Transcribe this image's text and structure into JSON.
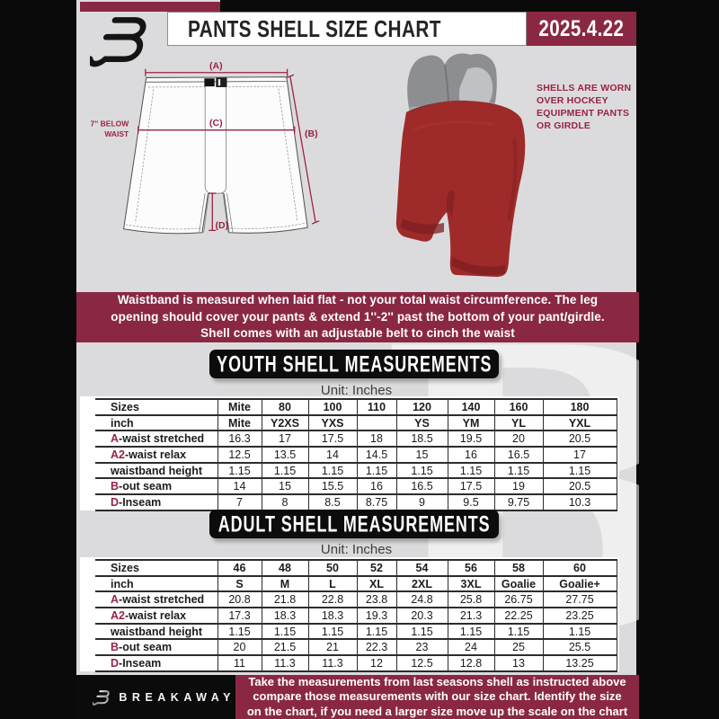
{
  "header": {
    "title": "PANTS SHELL SIZE CHART",
    "date": "2025.4.22"
  },
  "diagram": {
    "label_a": "(A)",
    "label_b": "(B)",
    "label_c": "(C)",
    "label_d": "(D)",
    "below_waist_1": "7'' BELOW",
    "below_waist_2": "WAIST",
    "photo_note": "SHELLS ARE WORN OVER HOCKEY EQUIPMENT PANTS OR GIRDLE"
  },
  "info_banner": {
    "lines": [
      "Waistband is measured when laid flat - not your total waist circumference. The leg",
      "opening should cover your pants & extend 1''-2'' past the bottom of your pant/girdle.",
      "Shell comes with an adjustable belt to cinch the waist"
    ]
  },
  "youth": {
    "heading": "YOUTH SHELL MEASUREMENTS",
    "unit": "Unit: Inches",
    "table": {
      "rows": [
        {
          "accent": "",
          "label": "Sizes",
          "header": true,
          "values": [
            "Mite",
            "80",
            "100",
            "110",
            "120",
            "140",
            "160",
            "180"
          ]
        },
        {
          "accent": "",
          "label": "inch",
          "header": true,
          "values": [
            "Mite",
            "Y2XS",
            "YXS",
            "",
            "YS",
            "YM",
            "YL",
            "YXL"
          ]
        },
        {
          "accent": "A",
          "label": "-waist stretched",
          "header": false,
          "values": [
            "16.3",
            "17",
            "17.5",
            "18",
            "18.5",
            "19.5",
            "20",
            "20.5"
          ]
        },
        {
          "accent": "A2",
          "label": "-waist relax",
          "header": false,
          "values": [
            "12.5",
            "13.5",
            "14",
            "14.5",
            "15",
            "16",
            "16.5",
            "17"
          ]
        },
        {
          "accent": "",
          "label": "waistband height",
          "header": false,
          "values": [
            "1.15",
            "1.15",
            "1.15",
            "1.15",
            "1.15",
            "1.15",
            "1.15",
            "1.15"
          ]
        },
        {
          "accent": "B",
          "label": "-out seam",
          "header": false,
          "values": [
            "14",
            "15",
            "15.5",
            "16",
            "16.5",
            "17.5",
            "19",
            "20.5"
          ]
        },
        {
          "accent": "D",
          "label": "-Inseam",
          "header": false,
          "values": [
            "7",
            "8",
            "8.5",
            "8.75",
            "9",
            "9.5",
            "9.75",
            "10.3"
          ]
        }
      ]
    }
  },
  "adult": {
    "heading": "ADULT SHELL MEASUREMENTS",
    "unit": "Unit: Inches",
    "table": {
      "rows": [
        {
          "accent": "",
          "label": "Sizes",
          "header": true,
          "values": [
            "46",
            "48",
            "50",
            "52",
            "54",
            "56",
            "58",
            "60"
          ]
        },
        {
          "accent": "",
          "label": "inch",
          "header": true,
          "values": [
            "S",
            "M",
            "L",
            "XL",
            "2XL",
            "3XL",
            "Goalie",
            "Goalie+"
          ]
        },
        {
          "accent": "A",
          "label": "-waist stretched",
          "header": false,
          "values": [
            "20.8",
            "21.8",
            "22.8",
            "23.8",
            "24.8",
            "25.8",
            "26.75",
            "27.75"
          ]
        },
        {
          "accent": "A2",
          "label": "-waist relax",
          "header": false,
          "values": [
            "17.3",
            "18.3",
            "18.3",
            "19.3",
            "20.3",
            "21.3",
            "22.25",
            "23.25"
          ]
        },
        {
          "accent": "",
          "label": "waistband height",
          "header": false,
          "values": [
            "1.15",
            "1.15",
            "1.15",
            "1.15",
            "1.15",
            "1.15",
            "1.15",
            "1.15"
          ]
        },
        {
          "accent": "B",
          "label": "-out seam",
          "header": false,
          "values": [
            "20",
            "21.5",
            "21",
            "22.3",
            "23",
            "24",
            "25",
            "25.5"
          ]
        },
        {
          "accent": "D",
          "label": "-Inseam",
          "header": false,
          "values": [
            "11",
            "11.3",
            "11.3",
            "12",
            "12.5",
            "12.8",
            "13",
            "13.25"
          ]
        }
      ]
    }
  },
  "footer": {
    "brand": "BREAKAWAY",
    "lines": [
      "Take the measurements from last seasons shell as instructed above",
      "compare those measurements  with our size chart. Identify the size",
      "on the chart, if you need a larger size move up the scale on the chart"
    ]
  },
  "watermark_letter": "B",
  "colors": {
    "maroon": "#8a2843",
    "accent": "#9b2242",
    "page_bg": "#dbdbdd",
    "shell_red": "#9e2a2a",
    "banner_black": "#0c0c0c"
  }
}
